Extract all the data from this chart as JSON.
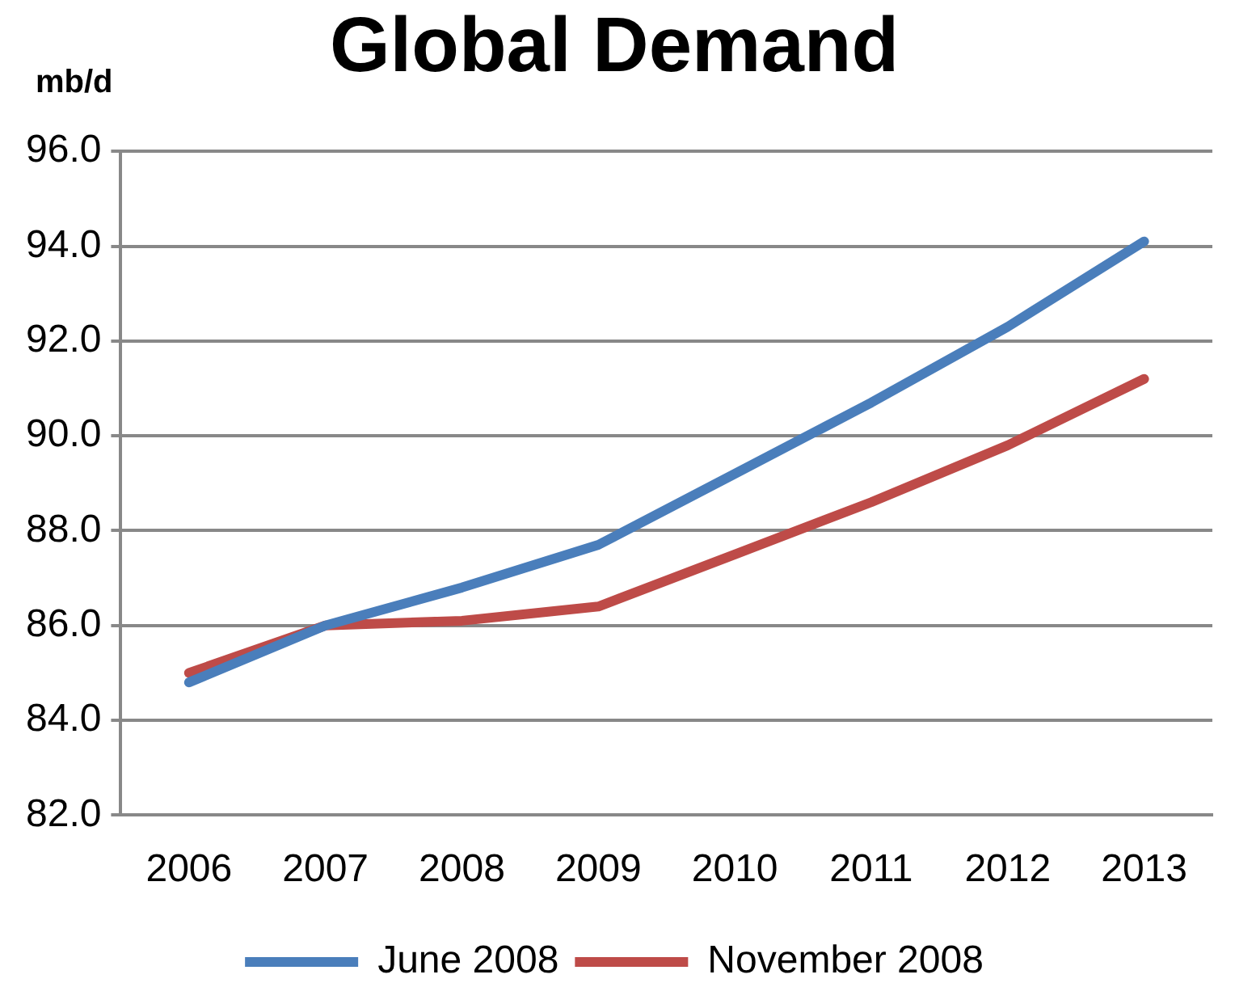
{
  "chart_data": {
    "type": "line",
    "title": "Global Demand",
    "ylabel": "mb/d",
    "categories": [
      "2006",
      "2007",
      "2008",
      "2009",
      "2010",
      "2011",
      "2012",
      "2013"
    ],
    "series": [
      {
        "name": "June 2008",
        "color": "#4a7ebb",
        "values": [
          84.8,
          86.0,
          86.8,
          87.7,
          89.2,
          90.7,
          92.3,
          94.1
        ]
      },
      {
        "name": "November 2008",
        "color": "#be4b48",
        "values": [
          85.0,
          86.0,
          86.1,
          86.4,
          87.5,
          88.6,
          89.8,
          91.2
        ]
      }
    ],
    "ylim": [
      82,
      96
    ],
    "yticks": [
      {
        "value": 82,
        "label": "82.0"
      },
      {
        "value": 84,
        "label": "84.0"
      },
      {
        "value": 86,
        "label": "86.0"
      },
      {
        "value": 88,
        "label": "88.0"
      },
      {
        "value": 90,
        "label": "90.0"
      },
      {
        "value": 92,
        "label": "92.0"
      },
      {
        "value": 94,
        "label": "94.0"
      },
      {
        "value": 96,
        "label": "96.0"
      }
    ],
    "grid": "y",
    "legend": "bottom",
    "marker": "none",
    "line_style": "solid"
  }
}
